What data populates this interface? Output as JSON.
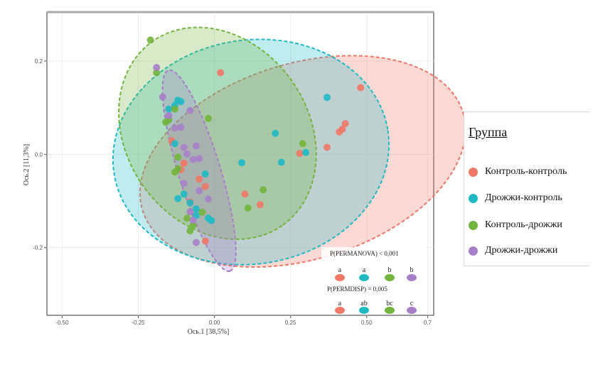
{
  "chart_data": {
    "type": "scatter",
    "title": "",
    "xlabel": "Ось.1 [38,5%]",
    "ylabel": "Ось.2 [11,3%]",
    "xlim": [
      -0.55,
      0.72
    ],
    "ylim": [
      -0.345,
      0.305
    ],
    "xticks": [
      -0.5,
      -0.25,
      0.0,
      0.25,
      0.5,
      0.7
    ],
    "xtick_labels": [
      "-0.50",
      "-0.25",
      "0.00",
      "0.25",
      "0.50",
      "0.7"
    ],
    "yticks": [
      0.2,
      0.0,
      -0.2
    ],
    "ytick_labels": [
      "0.2",
      "0.0",
      "-0.2"
    ],
    "grid": true,
    "legend": {
      "title": "Группа",
      "position": "right"
    },
    "series": [
      {
        "name": "Контроль-контроль",
        "color": "#f07868",
        "ellipse": {
          "cx": 0.29,
          "cy": -0.015,
          "rx": 0.55,
          "ry": 0.21,
          "angle_deg": -17
        },
        "points": [
          [
            0.48,
            0.143
          ],
          [
            0.43,
            0.066
          ],
          [
            0.42,
            0.054
          ],
          [
            0.41,
            0.048
          ],
          [
            0.37,
            0.015
          ],
          [
            0.28,
            0.002
          ],
          [
            0.1,
            -0.085
          ],
          [
            0.02,
            0.175
          ],
          [
            -0.03,
            -0.069
          ],
          [
            -0.05,
            -0.053
          ],
          [
            -0.1,
            -0.019
          ],
          [
            -0.11,
            -0.033
          ],
          [
            -0.08,
            -0.102
          ],
          [
            -0.03,
            -0.186
          ],
          [
            -0.14,
            0.029
          ],
          [
            0.15,
            -0.108
          ]
        ]
      },
      {
        "name": "Дрожжи-контроль",
        "color": "#1fb9c4",
        "ellipse": {
          "cx": 0.12,
          "cy": 0.005,
          "rx": 0.455,
          "ry": 0.24,
          "angle_deg": -9
        },
        "points": [
          [
            0.37,
            0.122
          ],
          [
            0.3,
            0.004
          ],
          [
            0.22,
            -0.017
          ],
          [
            0.2,
            0.045
          ],
          [
            0.09,
            -0.018
          ],
          [
            -0.12,
            0.116
          ],
          [
            -0.13,
            0.105
          ],
          [
            -0.11,
            0.113
          ],
          [
            -0.15,
            0.097
          ],
          [
            -0.13,
            0.023
          ],
          [
            -0.1,
            -0.085
          ],
          [
            -0.12,
            -0.095
          ],
          [
            -0.08,
            -0.104
          ],
          [
            -0.06,
            -0.131
          ],
          [
            -0.02,
            -0.137
          ],
          [
            -0.01,
            -0.142
          ],
          [
            -0.03,
            -0.042
          ],
          [
            -0.06,
            -0.117
          ]
        ]
      },
      {
        "name": "Контроль-дрожжи",
        "color": "#72b43e",
        "ellipse": {
          "cx": 0.01,
          "cy": 0.045,
          "rx": 0.37,
          "ry": 0.195,
          "angle_deg": 55
        },
        "points": [
          [
            -0.21,
            0.245
          ],
          [
            -0.19,
            0.175
          ],
          [
            -0.16,
            0.069
          ],
          [
            -0.15,
            0.074
          ],
          [
            -0.13,
            0.097
          ],
          [
            -0.02,
            0.077
          ],
          [
            0.29,
            0.023
          ],
          [
            0.16,
            -0.076
          ],
          [
            0.11,
            -0.115
          ],
          [
            -0.12,
            -0.031
          ],
          [
            -0.13,
            -0.038
          ],
          [
            -0.09,
            -0.137
          ],
          [
            -0.07,
            -0.152
          ],
          [
            -0.04,
            -0.124
          ],
          [
            -0.08,
            -0.164
          ],
          [
            -0.12,
            -0.006
          ]
        ]
      },
      {
        "name": "Дрожжи-дрожжи",
        "color": "#a77fc8",
        "ellipse": {
          "cx": -0.05,
          "cy": -0.035,
          "rx": 0.345,
          "ry": 0.045,
          "angle_deg": 73
        },
        "points": [
          [
            -0.19,
            0.186
          ],
          [
            -0.17,
            0.123
          ],
          [
            -0.15,
            0.083
          ],
          [
            -0.13,
            0.056
          ],
          [
            -0.08,
            0.094
          ],
          [
            -0.1,
            0.015
          ],
          [
            -0.09,
            0.001
          ],
          [
            -0.06,
            0.018
          ],
          [
            -0.05,
            -0.009
          ],
          [
            -0.07,
            -0.011
          ],
          [
            -0.1,
            -0.062
          ],
          [
            -0.08,
            -0.123
          ],
          [
            -0.05,
            -0.078
          ],
          [
            -0.07,
            -0.141
          ],
          [
            -0.02,
            -0.096
          ],
          [
            -0.06,
            -0.189
          ],
          [
            -0.11,
            0.058
          ]
        ]
      }
    ],
    "annotations": {
      "permanova": "P(PERMANOVA) < 0,001",
      "permanova_letters": [
        "a",
        "a",
        "b",
        "b"
      ],
      "permdisp": "P(PERMDISP) = 0,005",
      "permdisp_letters": [
        "a",
        "ab",
        "bc",
        "c"
      ]
    }
  }
}
